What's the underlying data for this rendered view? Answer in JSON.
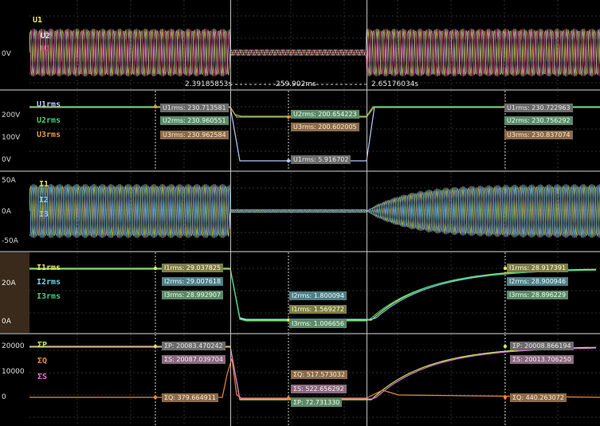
{
  "colors": {
    "background": "#000000",
    "grid": "#2b2b2b",
    "phase1_voltage": "#e6e65a",
    "phase2_voltage": "#d9d9d9",
    "phase3_voltage": "#d23c8c",
    "urms1": "#b8c8ff",
    "urms2": "#3fd07a",
    "urms3": "#e69a40",
    "i1": "#e6e65a",
    "i2": "#6fd5e6",
    "i3": "#a0b8ff",
    "p": "#c8e85a",
    "q": "#e68a3c",
    "s": "#d87ad0"
  },
  "panel1": {
    "labels": [
      "U1",
      "U2",
      "U3"
    ],
    "y_label": "0V",
    "cursor1": "2.39185853s",
    "delta": "259.902ms",
    "cursor2": "2.65176034s"
  },
  "panel2": {
    "labels": [
      "U1rms",
      "U2rms",
      "U3rms"
    ],
    "ticks": [
      "200V",
      "100V",
      "0V"
    ],
    "tags_left": [
      "U1rms: 230.713581",
      "U2rms: 230.960551",
      "U3rms: 230.962584"
    ],
    "tags_mid": [
      "U2rms: 200.654223",
      "U3rms: 200.602005",
      "U1rms: 5.916702"
    ],
    "tags_right": [
      "U1rms: 230.722963",
      "U2rms: 230.756292",
      "U3rms: 230.837074"
    ]
  },
  "panel3": {
    "labels": [
      "I1",
      "I2",
      "I3"
    ],
    "ticks": [
      "50A",
      "0A",
      "-50A"
    ]
  },
  "panel4": {
    "labels": [
      "I1rms",
      "I2rms",
      "I3rms"
    ],
    "ticks": [
      "20A",
      "0A"
    ],
    "tags_left": [
      "I1rms: 29.037825",
      "I2rms: 29.007618",
      "I3rms: 28.992907"
    ],
    "tags_mid": [
      "I2rms: 1.800094",
      "I1rms: 1.569272",
      "I3rms: 1.006656"
    ],
    "tags_right": [
      "I1rms: 28.917391",
      "I2rms: 28.900946",
      "I3rms: 28.896229"
    ]
  },
  "panel5": {
    "labels": [
      "ΣP",
      "ΣQ",
      "ΣS"
    ],
    "ticks": [
      "20000",
      "10000",
      "0"
    ],
    "tags_left": [
      "ΣP: 20083.470242",
      "ΣS: 20087.039704",
      "ΣQ: 379.664911"
    ],
    "tags_mid": [
      "ΣQ: 517.573032",
      "ΣS: 522.656292",
      "ΣP: 72.731330"
    ],
    "tags_right": [
      "ΣP: 20008.866194",
      "ΣS: 20013.706250",
      "ΣQ: 440.263072"
    ]
  }
}
